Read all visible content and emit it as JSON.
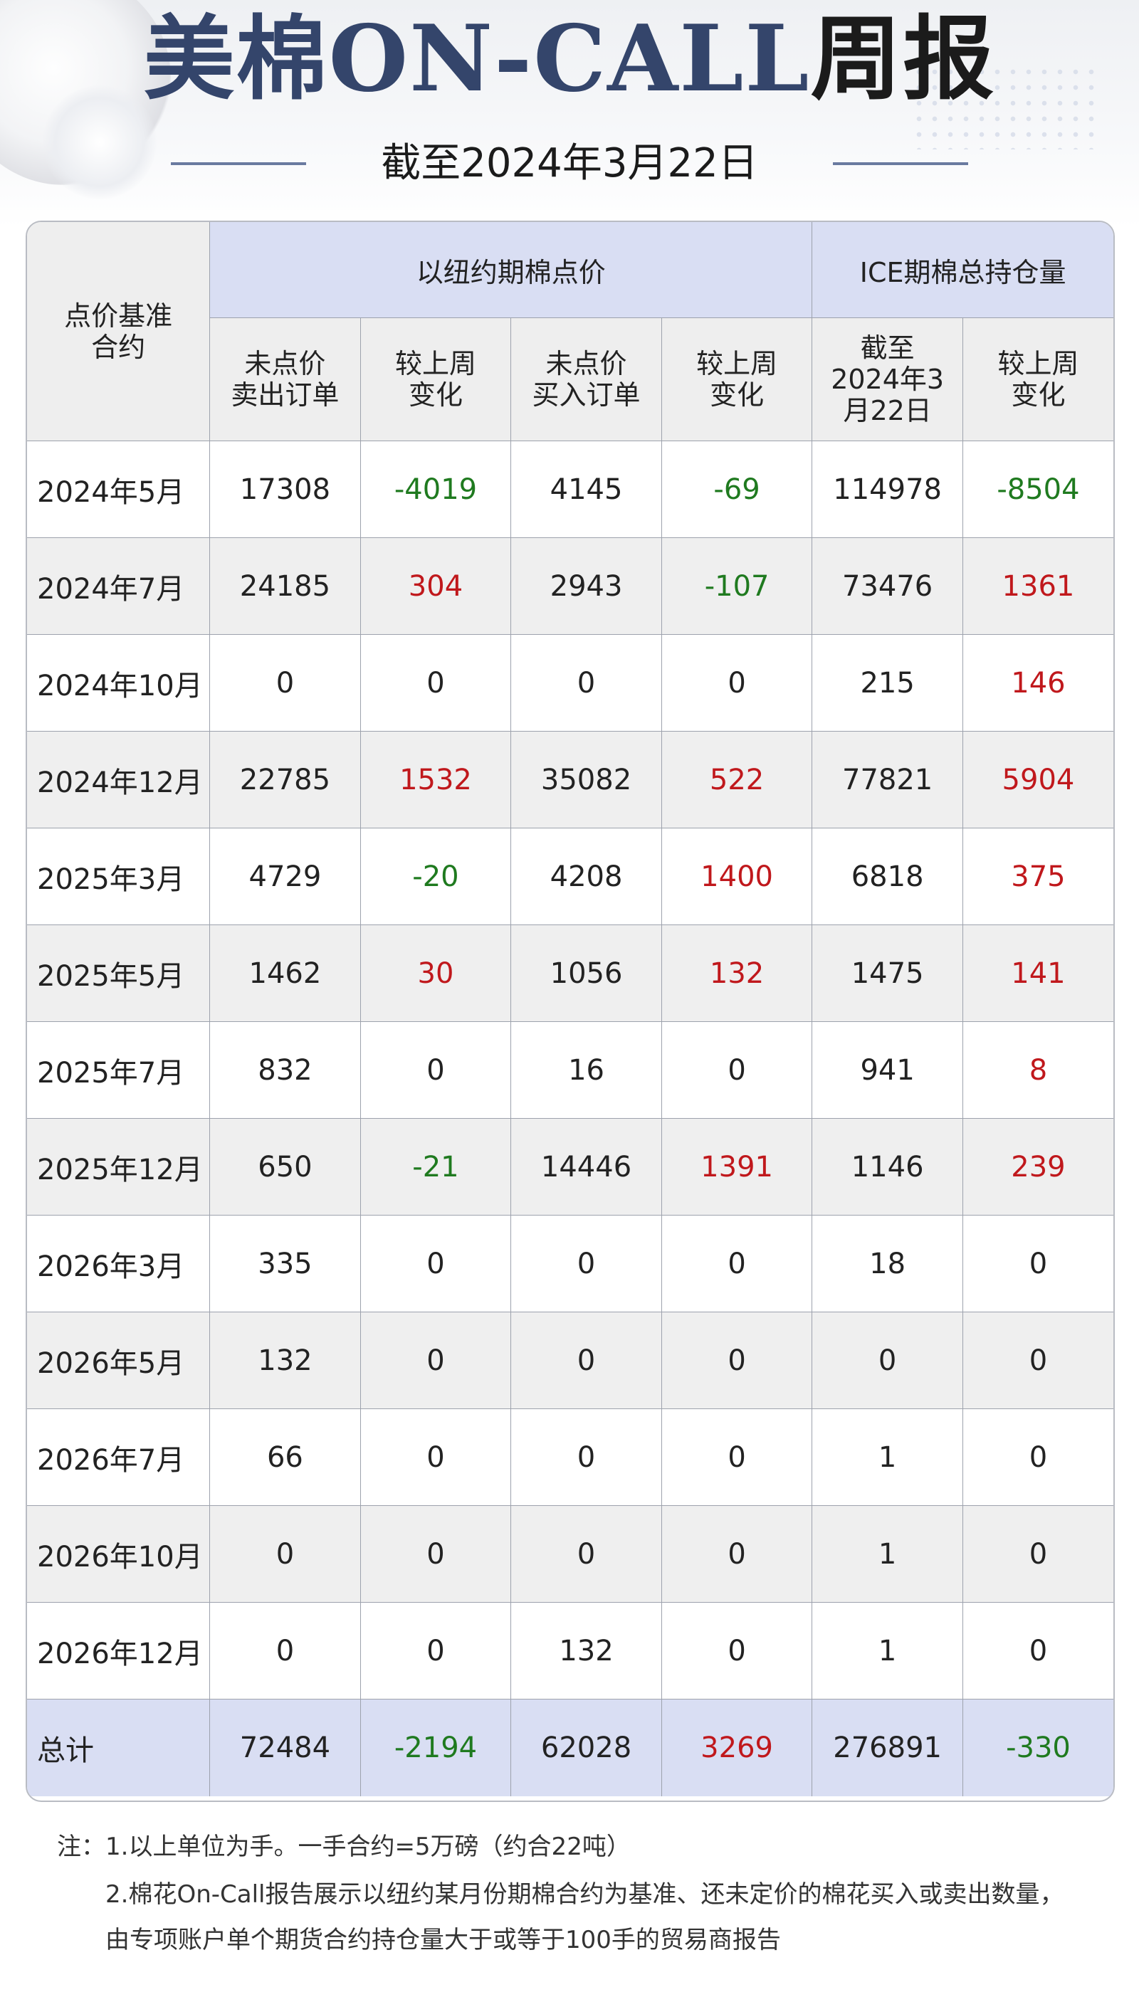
{
  "header": {
    "title_part1": "美棉ON-CALL",
    "title_part2": "周报",
    "subtitle": "截至2024年3月22日"
  },
  "table": {
    "corner_header": [
      "点价基准",
      "合约"
    ],
    "group_headers": {
      "nyc": "以纽约期棉点价",
      "ice": "ICE期棉总持仓量"
    },
    "sub_headers": {
      "sell_unpriced": [
        "未点价",
        "卖出订单"
      ],
      "sell_change": [
        "较上周",
        "变化"
      ],
      "buy_unpriced": [
        "未点价",
        "买入订单"
      ],
      "buy_change": [
        "较上周",
        "变化"
      ],
      "oi_asof": [
        "截至",
        "2024年3",
        "月22日"
      ],
      "oi_change": [
        "较上周",
        "变化"
      ]
    },
    "rows": [
      {
        "month": "2024年5月",
        "values": [
          "17308",
          "-4019",
          "4145",
          "-69",
          "114978",
          "-8504"
        ]
      },
      {
        "month": "2024年7月",
        "values": [
          "24185",
          "304",
          "2943",
          "-107",
          "73476",
          "1361"
        ]
      },
      {
        "month": "2024年10月",
        "values": [
          "0",
          "0",
          "0",
          "0",
          "215",
          "146"
        ]
      },
      {
        "month": "2024年12月",
        "values": [
          "22785",
          "1532",
          "35082",
          "522",
          "77821",
          "5904"
        ]
      },
      {
        "month": "2025年3月",
        "values": [
          "4729",
          "-20",
          "4208",
          "1400",
          "6818",
          "375"
        ]
      },
      {
        "month": "2025年5月",
        "values": [
          "1462",
          "30",
          "1056",
          "132",
          "1475",
          "141"
        ]
      },
      {
        "month": "2025年7月",
        "values": [
          "832",
          "0",
          "16",
          "0",
          "941",
          "8"
        ]
      },
      {
        "month": "2025年12月",
        "values": [
          "650",
          "-21",
          "14446",
          "1391",
          "1146",
          "239"
        ]
      },
      {
        "month": "2026年3月",
        "values": [
          "335",
          "0",
          "0",
          "0",
          "18",
          "0"
        ]
      },
      {
        "month": "2026年5月",
        "values": [
          "132",
          "0",
          "0",
          "0",
          "0",
          "0"
        ]
      },
      {
        "month": "2026年7月",
        "values": [
          "66",
          "0",
          "0",
          "0",
          "1",
          "0"
        ]
      },
      {
        "month": "2026年10月",
        "values": [
          "0",
          "0",
          "0",
          "0",
          "1",
          "0"
        ]
      },
      {
        "month": "2026年12月",
        "values": [
          "0",
          "0",
          "132",
          "0",
          "1",
          "0"
        ]
      }
    ],
    "total": {
      "month": "总计",
      "values": [
        "72484",
        "-2194",
        "62028",
        "3269",
        "276891",
        "-330"
      ]
    }
  },
  "notes": {
    "note1": "注：1.以上单位为手。一手合约=5万磅（约合22吨）",
    "note2": "2.棉花On-Call报告展示以纽约某月份期棉合约为基准、还未定价的棉花买入或卖出数量，由专项账户单个期货合约持仓量大于或等于100手的贸易商报告"
  },
  "colors": {
    "positive": "#c0181c",
    "negative": "#1f7a1f",
    "header_blue": "#d9def3",
    "title_blue": "#34456b"
  }
}
